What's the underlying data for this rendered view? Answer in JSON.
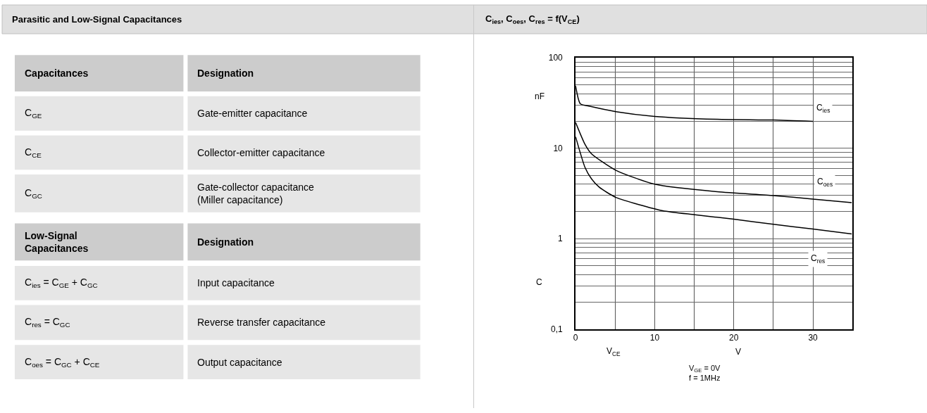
{
  "chart_data": [
    {
      "type": "other",
      "title": "Parasitic and Low-Signal Capacitances",
      "annotations": [
        "Capacitances",
        "Designation",
        "C$_{GE}$",
        "Gate-emitter capacitance",
        "C$_{CE}$",
        "Collector-emitter capacitance",
        "C$_{GC}$",
        "Gate-collector capacitance\n(Miller capacitance)",
        "Low-Signal\nCapacitances",
        "Designation",
        "C$_{ies}$ = C$_{GE}$ + C$_{GC}$",
        "Input capacitance",
        "C$_{res}$ = C$_{GC}$",
        "Reverse transfer capacitance",
        "C$_{oes}$ = C$_{GC}$ + C$_{CE}$",
        "Output capacitance"
      ]
    },
    {
      "type": "line",
      "title": "C$_{ies}$, C$_{oes}$, C$_{res}$ = f(V$_{CE}$)",
      "xlabel": "V$_{CE}$",
      "ylabel": "C",
      "log": "y",
      "grid": true,
      "marker": "none",
      "line_style": "solid",
      "xlim": [
        0,
        35
      ],
      "ylim": [
        0.1,
        100
      ],
      "xticks": [
        0,
        {
          "value": 5,
          "label": null
        },
        10,
        {
          "value": 15,
          "label": null
        },
        20,
        {
          "value": 25,
          "label": null
        },
        30,
        {
          "value": 35,
          "label": null
        }
      ],
      "yticks": [
        {
          "value": 0.1,
          "label": "0,1"
        },
        {
          "value": 0.2,
          "label": null
        },
        {
          "value": 0.3,
          "label": null
        },
        {
          "value": 0.4,
          "label": null
        },
        {
          "value": 0.5,
          "label": null
        },
        {
          "value": 0.6,
          "label": null
        },
        {
          "value": 0.7,
          "label": null
        },
        {
          "value": 0.8,
          "label": null
        },
        {
          "value": 0.9,
          "label": null
        },
        1,
        {
          "value": 2,
          "label": null
        },
        {
          "value": 3,
          "label": null
        },
        {
          "value": 4,
          "label": null
        },
        {
          "value": 5,
          "label": null
        },
        {
          "value": 6,
          "label": null
        },
        {
          "value": 7,
          "label": null
        },
        {
          "value": 8,
          "label": null
        },
        {
          "value": 9,
          "label": null
        },
        10,
        {
          "value": 20,
          "label": null
        },
        {
          "value": 30,
          "label": null
        },
        {
          "value": 40,
          "label": null
        },
        {
          "value": 50,
          "label": null
        },
        {
          "value": 60,
          "label": null
        },
        {
          "value": 70,
          "label": null
        },
        {
          "value": 80,
          "label": null
        },
        {
          "value": 90,
          "label": null
        },
        100
      ],
      "series": [
        {
          "color": "#000000",
          "x": [
            0,
            0.6,
            1.9,
            5.1,
            10,
            17.9,
            25,
            30
          ],
          "values": [
            49,
            31,
            29,
            25.4,
            22.5,
            20.9,
            20.5,
            19.8
          ]
        },
        {
          "color": "#000000",
          "x": [
            0,
            1.2,
            2,
            5.1,
            10,
            17.9,
            25,
            30,
            34.9
          ],
          "values": [
            19.3,
            11,
            8.7,
            5.7,
            4,
            3.3,
            3,
            2.74,
            2.5
          ]
        },
        {
          "color": "#000000",
          "x": [
            0,
            1.2,
            2,
            3,
            5.1,
            11,
            15.1,
            20,
            25,
            30,
            34.9
          ],
          "values": [
            13.4,
            6.1,
            4.6,
            3.7,
            2.86,
            2.04,
            1.84,
            1.64,
            1.44,
            1.28,
            1.13
          ]
        }
      ],
      "annotations": [
        {
          "text": "C$_{ies}$",
          "x": 31.3,
          "y": 27.7
        },
        {
          "text": "C$_{oes}$",
          "x": 31.5,
          "y": 4.2
        },
        {
          "text": "C$_{res}$",
          "x": 30.6,
          "y": 0.6
        },
        "nF",
        "V",
        "V$_{GE}$ = 0V\nf = 1MHz"
      ]
    }
  ]
}
